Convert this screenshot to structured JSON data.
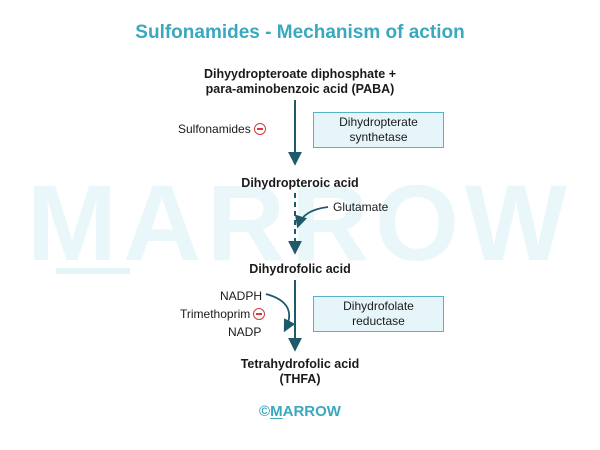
{
  "title": "Sulfonamides - Mechanism of action",
  "watermark": "MARROW",
  "nodes": {
    "substrate": "Dihyydropteroate diphosphate +\npara-aminobenzoic acid (PABA)",
    "dihydropteroic": "Dihydropteroic acid",
    "dihydrofolic": "Dihydrofolic acid",
    "thfa": "Tetrahydrofolic acid\n(THFA)"
  },
  "enzymes": {
    "step1": "Dihydropterate\nsynthetase",
    "step3": "Dihydrofolate\nreductase"
  },
  "labels": {
    "sulfonamides": "Sulfonamides",
    "glutamate": "Glutamate",
    "nadph": "NADPH",
    "trimethoprim": "Trimethoprim",
    "nadp": "NADP"
  },
  "logo": {
    "symbol": "©",
    "first_letter": "M",
    "rest": "ARROW"
  },
  "colors": {
    "title": "#3aa8bf",
    "arrow": "#1f5a6a",
    "inhibitor": "#d23a3a",
    "enzyme_fill": "#e6f5f9",
    "enzyme_border": "#56b3c8",
    "watermark": "#e9f7fa"
  }
}
